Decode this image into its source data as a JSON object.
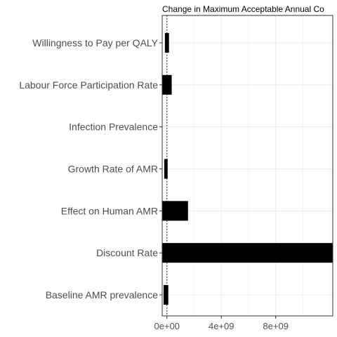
{
  "chart_data": {
    "type": "bar",
    "orientation": "horizontal",
    "title": "Change in Maximum Acceptable Annual Co",
    "xlabel": "",
    "ylabel": "",
    "xlim": [
      -350000000.0,
      12200000000.0
    ],
    "x_ticks": [
      {
        "value": 0,
        "label": "0e+00"
      },
      {
        "value": 4000000000,
        "label": "4e+09"
      },
      {
        "value": 8000000000,
        "label": "8e+09"
      }
    ],
    "reference_line": {
      "value": 0,
      "style": "dotted"
    },
    "grid": true,
    "categories": [
      "Willingness to Pay per QALY",
      "Labour Force Participation Rate",
      "Infection Prevalence",
      "Growth Rate of AMR",
      "Effect on Human AMR",
      "Discount Rate",
      "Baseline AMR prevalence"
    ],
    "ranges": [
      {
        "low": -150000000.0,
        "high": 150000000.0
      },
      {
        "low": -550000000.0,
        "high": 350000000.0
      },
      {
        "low": -850000000.0,
        "high": -550000000.0
      },
      {
        "low": -200000000.0,
        "high": 50000000.0
      },
      {
        "low": -450000000.0,
        "high": 1550000000.0
      },
      {
        "low": -700000000.0,
        "high": 12650000000.0
      },
      {
        "low": -250000000.0,
        "high": 100000000.0
      }
    ],
    "bar_color": "#000000"
  }
}
